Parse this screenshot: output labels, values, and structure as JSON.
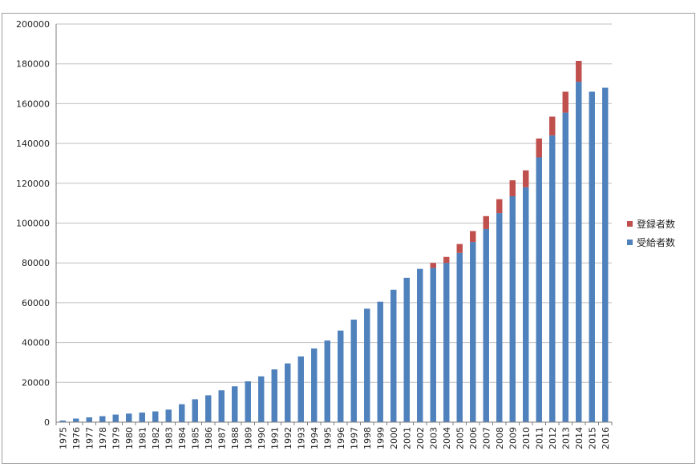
{
  "chart_data": {
    "type": "bar",
    "stacked": true,
    "title": "",
    "xlabel": "",
    "ylabel": "",
    "ylim": [
      0,
      200000
    ],
    "yticks": [
      0,
      20000,
      40000,
      60000,
      80000,
      100000,
      120000,
      140000,
      160000,
      180000,
      200000
    ],
    "grid": true,
    "legend_position": "right",
    "categories": [
      "1975",
      "1976",
      "1977",
      "1978",
      "1979",
      "1980",
      "1981",
      "1982",
      "1983",
      "1984",
      "1985",
      "1986",
      "1987",
      "1988",
      "1989",
      "1990",
      "1991",
      "1992",
      "1993",
      "1994",
      "1995",
      "1996",
      "1997",
      "1998",
      "1999",
      "2000",
      "2001",
      "2002",
      "2003",
      "2004",
      "2005",
      "2006",
      "2007",
      "2008",
      "2009",
      "2010",
      "2011",
      "2012",
      "2013",
      "2014",
      "2015",
      "2016"
    ],
    "series": [
      {
        "name": "受給者数",
        "color": "#4f81bd",
        "values": [
          800,
          1800,
          2400,
          3000,
          3800,
          4300,
          4800,
          5400,
          6300,
          9000,
          11500,
          13500,
          16000,
          18000,
          20500,
          23000,
          26500,
          29500,
          33000,
          37000,
          41000,
          46000,
          51500,
          57000,
          60500,
          66500,
          72500,
          77000,
          77500,
          80000,
          85000,
          90500,
          97000,
          105000,
          113500,
          118000,
          133000,
          144000,
          155500,
          171000,
          166000,
          168000
        ]
      },
      {
        "name": "登録者数",
        "color": "#c0504d",
        "values": [
          0,
          0,
          0,
          0,
          0,
          0,
          0,
          0,
          0,
          0,
          0,
          0,
          0,
          0,
          0,
          0,
          0,
          0,
          0,
          0,
          0,
          0,
          0,
          0,
          0,
          0,
          0,
          0,
          2500,
          3000,
          4500,
          5500,
          6500,
          7000,
          8000,
          8500,
          9500,
          9500,
          10500,
          10500,
          0,
          0
        ]
      }
    ],
    "legend": [
      {
        "name": "登録者数",
        "color": "#c0504d"
      },
      {
        "name": "受給者数",
        "color": "#4f81bd"
      }
    ]
  }
}
